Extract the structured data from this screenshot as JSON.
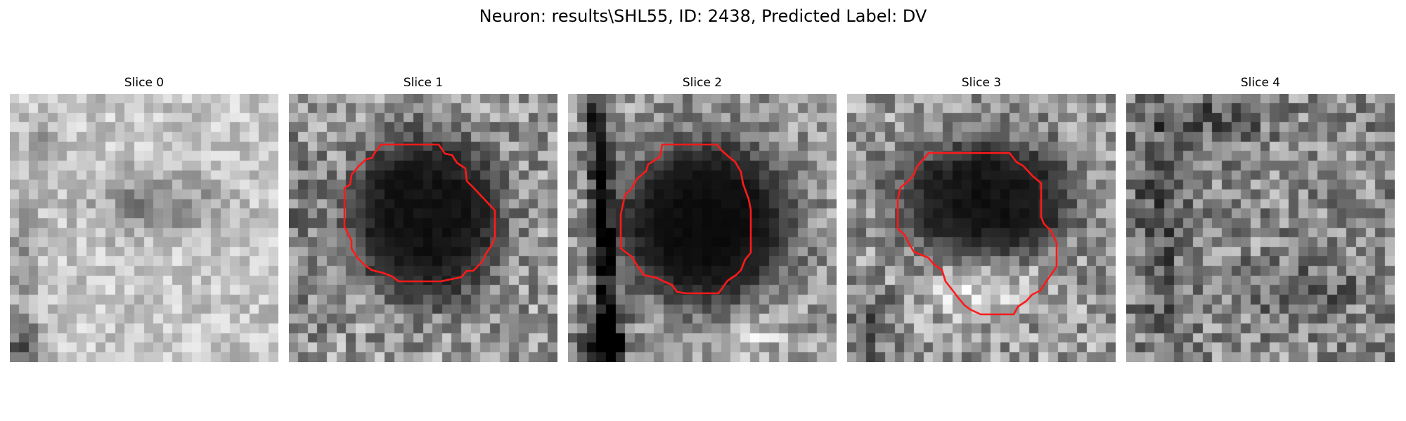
{
  "figure": {
    "title": "Neuron: results\\SHL55, ID: 2438, Predicted Label: DV"
  },
  "slices": [
    {
      "title": "Slice 0",
      "has_roi": false
    },
    {
      "title": "Slice 1",
      "has_roi": true
    },
    {
      "title": "Slice 2",
      "has_roi": true
    },
    {
      "title": "Slice 3",
      "has_roi": true
    },
    {
      "title": "Slice 4",
      "has_roi": false
    }
  ],
  "colors": {
    "background": "#ffffff",
    "roi_outline": "#ff1a1a",
    "colormap": "gray"
  }
}
